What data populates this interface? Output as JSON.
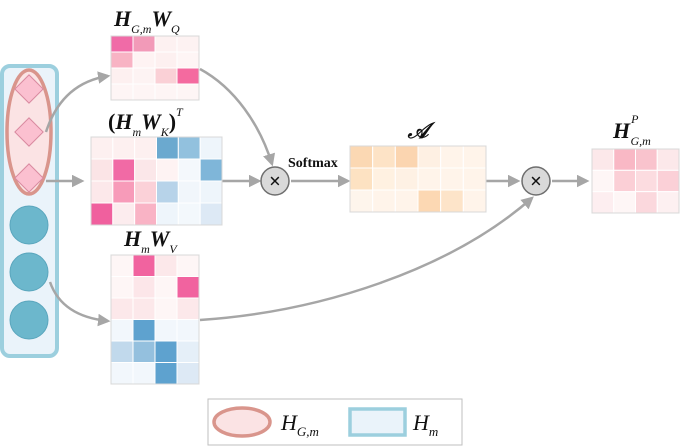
{
  "labels": {
    "q": {
      "main": "H",
      "sub": "G,m",
      "main2": "W",
      "sub2": "Q"
    },
    "k": {
      "open": "(",
      "main": "H",
      "sub": "m",
      "main2": "W",
      "sub2": "K",
      "close": ")",
      "sup": "T"
    },
    "v": {
      "main": "H",
      "sub": "m",
      "main2": "W",
      "sub2": "V"
    },
    "attn": {
      "main": "𝒜"
    },
    "out": {
      "main": "H",
      "sub": "G,m",
      "sup": "P"
    },
    "softmax": "Softmax",
    "multiply_symbol": "×"
  },
  "legend": {
    "item1": {
      "main": "H",
      "sub": "G,m"
    },
    "item2": {
      "main": "H",
      "sub": "m"
    }
  },
  "colors": {
    "group_ellipse": "#d9958c",
    "group_fill": "#fbe3e4",
    "column_border": "#9ccfde",
    "column_fill": "#eaf3fa",
    "node_blue": "#6cb7cc",
    "node_pink": "#fbc0d0",
    "arrow": "#a6a6a6"
  },
  "matrices": {
    "q": {
      "rows": 4,
      "cols": 4,
      "cells": [
        "#f06ba7",
        "#f29ab8",
        "#fdf1f1",
        "#fdf2f2",
        "#f8b3c4",
        "#fef3f3",
        "#fdf0f0",
        "#fef5f5",
        "#fdf0f0",
        "#fdf3f3",
        "#fad0d6",
        "#f46a9f",
        "#fef5f5",
        "#fef5f5",
        "#fef5f5",
        "#fef5f5"
      ]
    },
    "k": {
      "rows": 4,
      "cols": 6,
      "cells": [
        "#fdf0f0",
        "#fdf0f0",
        "#fdf0f0",
        "#6ba9cf",
        "#92c1de",
        "#eef5fb",
        "#fbe4e6",
        "#f16aa5",
        "#fbe7e9",
        "#fef3f3",
        "#f4f8fc",
        "#7fb6d9",
        "#fce8ea",
        "#f79bb9",
        "#fbd1d8",
        "#b7d3e9",
        "#f1f6fb",
        "#eef5fb",
        "#f0609e",
        "#fcecee",
        "#f9b3c5",
        "#eef5fb",
        "#f3f8fc",
        "#dde9f5"
      ]
    },
    "attn": {
      "rows": 3,
      "cols": 6,
      "cells": [
        "#fbd8b3",
        "#fde3c6",
        "#fbd5b0",
        "#fef0e3",
        "#fff4ea",
        "#fff4ea",
        "#fde2c2",
        "#fff1e1",
        "#fef1e4",
        "#fff4ea",
        "#fff4ea",
        "#fff4ea",
        "#fef5ec",
        "#fff4ea",
        "#fff4ea",
        "#fcd8b3",
        "#fde4c9",
        "#fff4ea"
      ]
    },
    "v": {
      "rows": 6,
      "cols": 4,
      "cells": [
        "#fef6f6",
        "#f1639f",
        "#fce8ea",
        "#fef6f6",
        "#fef6f6",
        "#fce6e9",
        "#fef6f6",
        "#f1639f",
        "#fce8ea",
        "#fce8ea",
        "#fef6f6",
        "#fce8ea",
        "#f2f7fc",
        "#5ea2cf",
        "#f2f7fc",
        "#f2f7fc",
        "#c1d9ec",
        "#94c0de",
        "#5ea2cf",
        "#e5eff8",
        "#f2f7fc",
        "#f2f7fc",
        "#5ea2cf",
        "#dde9f5"
      ]
    },
    "out": {
      "rows": 3,
      "cols": 4,
      "cells": [
        "#fce8ea",
        "#f9b8c5",
        "#f9c3cd",
        "#fce8ea",
        "#fef6f6",
        "#fbcfd6",
        "#fcdce0",
        "#fbd0d7",
        "#fdeef0",
        "#fef6f6",
        "#fbd8dd",
        "#fdf0f1"
      ]
    }
  }
}
